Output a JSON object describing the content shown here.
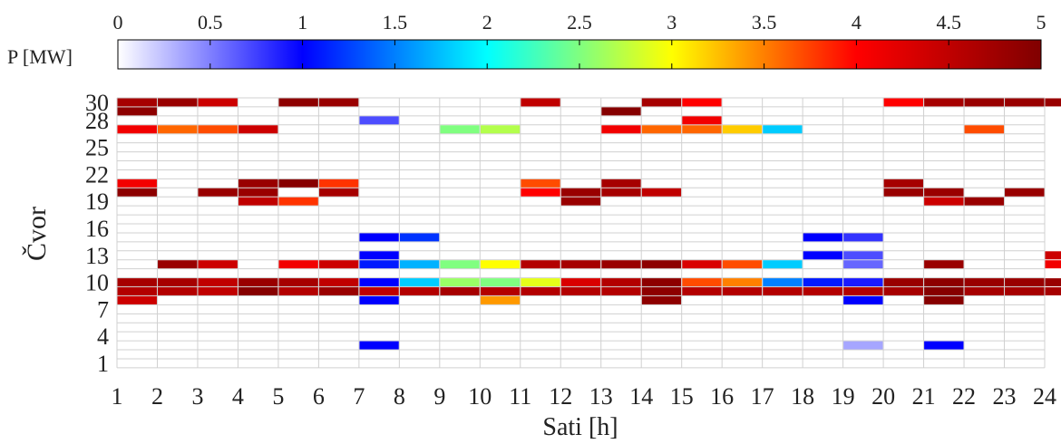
{
  "chart_data": {
    "type": "heatmap",
    "xlabel": "Sati [h]",
    "ylabel": "Čvor",
    "x_ticks": [
      "1",
      "2",
      "3",
      "4",
      "5",
      "6",
      "7",
      "8",
      "9",
      "10",
      "11",
      "12",
      "13",
      "14",
      "15",
      "16",
      "17",
      "18",
      "19",
      "20",
      "21",
      "22",
      "23",
      "24"
    ],
    "y_ticks": [
      "1",
      "4",
      "7",
      "10",
      "13",
      "16",
      "19",
      "22",
      "25",
      "28",
      "30"
    ],
    "xlim": [
      1,
      24
    ],
    "ylim": [
      1,
      30
    ],
    "grid": true,
    "colorbar": {
      "label": "P [MW]",
      "min": 0,
      "max": 5,
      "ticks": [
        "0",
        "0.5",
        "1",
        "1.5",
        "2",
        "2.5",
        "3",
        "3.5",
        "4",
        "4.5",
        "5"
      ],
      "placement": "top"
    },
    "colors": {
      "background": "#ffffff",
      "grid": "#d0d0d0",
      "colormap": [
        "#ffffff",
        "#0000ff",
        "#00ffff",
        "#ffff00",
        "#ff0000",
        "#800000"
      ]
    },
    "cells": [
      {
        "h": 1,
        "node": 30,
        "value": 4.7
      },
      {
        "h": 2,
        "node": 30,
        "value": 4.8
      },
      {
        "h": 3,
        "node": 30,
        "value": 4.4
      },
      {
        "h": 5,
        "node": 30,
        "value": 4.9
      },
      {
        "h": 6,
        "node": 30,
        "value": 4.8
      },
      {
        "h": 11,
        "node": 30,
        "value": 4.5
      },
      {
        "h": 14,
        "node": 30,
        "value": 4.7
      },
      {
        "h": 15,
        "node": 30,
        "value": 4.0
      },
      {
        "h": 20,
        "node": 30,
        "value": 4.0
      },
      {
        "h": 21,
        "node": 30,
        "value": 4.7
      },
      {
        "h": 22,
        "node": 30,
        "value": 4.8
      },
      {
        "h": 23,
        "node": 30,
        "value": 4.8
      },
      {
        "h": 24,
        "node": 30,
        "value": 4.8
      },
      {
        "h": 1,
        "node": 29,
        "value": 4.9
      },
      {
        "h": 13,
        "node": 29,
        "value": 4.95
      },
      {
        "h": 7,
        "node": 28,
        "value": 0.7
      },
      {
        "h": 15,
        "node": 28,
        "value": 4.1
      },
      {
        "h": 1,
        "node": 27,
        "value": 4.1
      },
      {
        "h": 2,
        "node": 27,
        "value": 3.6
      },
      {
        "h": 3,
        "node": 27,
        "value": 3.7
      },
      {
        "h": 4,
        "node": 27,
        "value": 4.4
      },
      {
        "h": 9,
        "node": 27,
        "value": 2.5
      },
      {
        "h": 10,
        "node": 27,
        "value": 2.7
      },
      {
        "h": 13,
        "node": 27,
        "value": 4.1
      },
      {
        "h": 14,
        "node": 27,
        "value": 3.6
      },
      {
        "h": 15,
        "node": 27,
        "value": 3.6
      },
      {
        "h": 16,
        "node": 27,
        "value": 3.2
      },
      {
        "h": 17,
        "node": 27,
        "value": 1.8
      },
      {
        "h": 22,
        "node": 27,
        "value": 3.7
      },
      {
        "h": 1,
        "node": 21,
        "value": 4.1
      },
      {
        "h": 4,
        "node": 21,
        "value": 4.8
      },
      {
        "h": 5,
        "node": 21,
        "value": 4.95
      },
      {
        "h": 6,
        "node": 21,
        "value": 3.8
      },
      {
        "h": 11,
        "node": 21,
        "value": 3.7
      },
      {
        "h": 13,
        "node": 21,
        "value": 4.7
      },
      {
        "h": 20,
        "node": 21,
        "value": 4.7
      },
      {
        "h": 1,
        "node": 20,
        "value": 4.9
      },
      {
        "h": 3,
        "node": 20,
        "value": 4.8
      },
      {
        "h": 4,
        "node": 20,
        "value": 4.8
      },
      {
        "h": 6,
        "node": 20,
        "value": 4.7
      },
      {
        "h": 11,
        "node": 20,
        "value": 4.0
      },
      {
        "h": 12,
        "node": 20,
        "value": 4.8
      },
      {
        "h": 13,
        "node": 20,
        "value": 4.7
      },
      {
        "h": 14,
        "node": 20,
        "value": 4.5
      },
      {
        "h": 20,
        "node": 20,
        "value": 4.8
      },
      {
        "h": 21,
        "node": 20,
        "value": 4.8
      },
      {
        "h": 23,
        "node": 20,
        "value": 4.8
      },
      {
        "h": 4,
        "node": 19,
        "value": 4.5
      },
      {
        "h": 5,
        "node": 19,
        "value": 3.8
      },
      {
        "h": 12,
        "node": 19,
        "value": 4.8
      },
      {
        "h": 21,
        "node": 19,
        "value": 4.4
      },
      {
        "h": 22,
        "node": 19,
        "value": 4.8
      },
      {
        "h": 7,
        "node": 15,
        "value": 1.0
      },
      {
        "h": 8,
        "node": 15,
        "value": 1.2
      },
      {
        "h": 18,
        "node": 15,
        "value": 1.0
      },
      {
        "h": 19,
        "node": 15,
        "value": 0.8
      },
      {
        "h": 7,
        "node": 13,
        "value": 1.0
      },
      {
        "h": 18,
        "node": 13,
        "value": 1.0
      },
      {
        "h": 19,
        "node": 13,
        "value": 0.7
      },
      {
        "h": 24,
        "node": 13,
        "value": 4.4
      },
      {
        "h": 2,
        "node": 12,
        "value": 4.8
      },
      {
        "h": 3,
        "node": 12,
        "value": 4.4
      },
      {
        "h": 5,
        "node": 12,
        "value": 4.1
      },
      {
        "h": 6,
        "node": 12,
        "value": 4.4
      },
      {
        "h": 7,
        "node": 12,
        "value": 1.1
      },
      {
        "h": 8,
        "node": 12,
        "value": 1.7
      },
      {
        "h": 9,
        "node": 12,
        "value": 2.5
      },
      {
        "h": 10,
        "node": 12,
        "value": 3.0
      },
      {
        "h": 11,
        "node": 12,
        "value": 4.6
      },
      {
        "h": 12,
        "node": 12,
        "value": 4.7
      },
      {
        "h": 13,
        "node": 12,
        "value": 4.8
      },
      {
        "h": 14,
        "node": 12,
        "value": 4.9
      },
      {
        "h": 15,
        "node": 12,
        "value": 4.3
      },
      {
        "h": 16,
        "node": 12,
        "value": 3.7
      },
      {
        "h": 17,
        "node": 12,
        "value": 1.8
      },
      {
        "h": 19,
        "node": 12,
        "value": 0.6
      },
      {
        "h": 21,
        "node": 12,
        "value": 4.8
      },
      {
        "h": 24,
        "node": 12,
        "value": 4.1
      },
      {
        "h": 1,
        "node": 10,
        "value": 4.7
      },
      {
        "h": 2,
        "node": 10,
        "value": 4.7
      },
      {
        "h": 3,
        "node": 10,
        "value": 4.5
      },
      {
        "h": 4,
        "node": 10,
        "value": 4.8
      },
      {
        "h": 5,
        "node": 10,
        "value": 4.7
      },
      {
        "h": 6,
        "node": 10,
        "value": 4.5
      },
      {
        "h": 7,
        "node": 10,
        "value": 1.0
      },
      {
        "h": 8,
        "node": 10,
        "value": 1.8
      },
      {
        "h": 9,
        "node": 10,
        "value": 2.6
      },
      {
        "h": 10,
        "node": 10,
        "value": 2.5
      },
      {
        "h": 11,
        "node": 10,
        "value": 2.9
      },
      {
        "h": 12,
        "node": 10,
        "value": 4.3
      },
      {
        "h": 13,
        "node": 10,
        "value": 4.6
      },
      {
        "h": 14,
        "node": 10,
        "value": 4.9
      },
      {
        "h": 15,
        "node": 10,
        "value": 3.7
      },
      {
        "h": 16,
        "node": 10,
        "value": 3.5
      },
      {
        "h": 17,
        "node": 10,
        "value": 1.5
      },
      {
        "h": 18,
        "node": 10,
        "value": 1.1
      },
      {
        "h": 19,
        "node": 10,
        "value": 0.9
      },
      {
        "h": 20,
        "node": 10,
        "value": 4.8
      },
      {
        "h": 21,
        "node": 10,
        "value": 4.9
      },
      {
        "h": 22,
        "node": 10,
        "value": 4.8
      },
      {
        "h": 23,
        "node": 10,
        "value": 4.8
      },
      {
        "h": 24,
        "node": 10,
        "value": 4.8
      },
      {
        "h": 1,
        "node": 9,
        "value": 4.6
      },
      {
        "h": 2,
        "node": 9,
        "value": 4.6
      },
      {
        "h": 3,
        "node": 9,
        "value": 4.5
      },
      {
        "h": 4,
        "node": 9,
        "value": 4.95
      },
      {
        "h": 5,
        "node": 9,
        "value": 4.6
      },
      {
        "h": 6,
        "node": 9,
        "value": 4.8
      },
      {
        "h": 7,
        "node": 9,
        "value": 4.5
      },
      {
        "h": 8,
        "node": 9,
        "value": 4.6
      },
      {
        "h": 9,
        "node": 9,
        "value": 4.7
      },
      {
        "h": 10,
        "node": 9,
        "value": 4.6
      },
      {
        "h": 11,
        "node": 9,
        "value": 4.6
      },
      {
        "h": 12,
        "node": 9,
        "value": 4.6
      },
      {
        "h": 13,
        "node": 9,
        "value": 4.6
      },
      {
        "h": 14,
        "node": 9,
        "value": 4.9
      },
      {
        "h": 15,
        "node": 9,
        "value": 4.6
      },
      {
        "h": 16,
        "node": 9,
        "value": 4.6
      },
      {
        "h": 17,
        "node": 9,
        "value": 4.6
      },
      {
        "h": 18,
        "node": 9,
        "value": 4.6
      },
      {
        "h": 19,
        "node": 9,
        "value": 4.6
      },
      {
        "h": 20,
        "node": 9,
        "value": 4.7
      },
      {
        "h": 21,
        "node": 9,
        "value": 4.95
      },
      {
        "h": 22,
        "node": 9,
        "value": 4.7
      },
      {
        "h": 23,
        "node": 9,
        "value": 4.7
      },
      {
        "h": 24,
        "node": 9,
        "value": 4.7
      },
      {
        "h": 1,
        "node": 8,
        "value": 4.4
      },
      {
        "h": 7,
        "node": 8,
        "value": 1.0
      },
      {
        "h": 10,
        "node": 8,
        "value": 3.4
      },
      {
        "h": 14,
        "node": 8,
        "value": 4.9
      },
      {
        "h": 19,
        "node": 8,
        "value": 1.0
      },
      {
        "h": 21,
        "node": 8,
        "value": 4.95
      },
      {
        "h": 7,
        "node": 3,
        "value": 1.0
      },
      {
        "h": 19,
        "node": 3,
        "value": 0.35
      },
      {
        "h": 21,
        "node": 3,
        "value": 1.0
      }
    ]
  }
}
